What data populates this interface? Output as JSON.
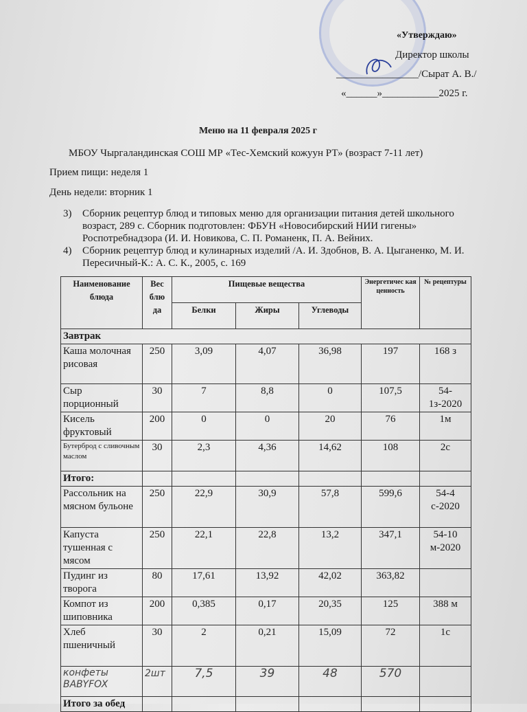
{
  "approval": {
    "title": "«Утверждаю»",
    "position": "Директор школы",
    "signature_line": "________________/Сырат А. В./",
    "date_line": "«______»___________2025 г.",
    "stamp_text": "МБОУ Чыргаландинская СОШ"
  },
  "title": "Меню на 11 февраля 2025 г",
  "school": "МБОУ Чыргаландинская СОШ МР «Тес-Хемский кожуун РТ» (возраст 7-11 лет)",
  "meal_week": "Прием пищи: неделя 1",
  "weekday": "День недели: вторник 1",
  "sources": [
    {
      "num": "3)",
      "text": "Сборник рецептур блюд и типовых меню для организации питания детей школьного возраст, 289 с. Сборник подготовлен: ФБУН «Новосибирский НИИ гигены» Роспотребнадзора (И. И. Новикова, С. П. Романенк, П. А. Вейних."
    },
    {
      "num": "4)",
      "text": "Сборник рецептур блюд и кулинарных изделий /А.  И. Здобнов, В. А. Цыганенко, М. И. Пересичный-К.: А. С. К., 2005, с. 169"
    }
  ],
  "table": {
    "headers": {
      "name": "Наименование блюда",
      "weight": "Вес блю да",
      "nutrients": "Пищевые вещества",
      "protein": "Белки",
      "fat": "Жиры",
      "carbs": "Углеводы",
      "energy": "Энергетичес кая ценность",
      "recipe": "№ рецептуры"
    },
    "breakfast_label": "Завтрак",
    "breakfast": [
      [
        "Каша молочная рисовая",
        "250",
        "3,09",
        "4,07",
        "36,98",
        "197",
        "168 з"
      ],
      [
        "Сыр порционный",
        "30",
        "7",
        "8,8",
        "0",
        "107,5",
        "54-1з-2020"
      ],
      [
        "Кисель фруктовый",
        "200",
        "0",
        "0",
        "20",
        "76",
        "1м"
      ],
      [
        "Бутерброд с сливочным маслом",
        "30",
        "2,3",
        "4,36",
        "14,62",
        "108",
        "2с"
      ]
    ],
    "total_label": "Итого:",
    "lunch": [
      [
        "Рассольник на мясном бульоне",
        "250",
        "22,9",
        "30,9",
        "57,8",
        "599,6",
        "54-4 с-2020"
      ],
      [
        "Капуста тушенная с мясом",
        "250",
        "22,1",
        "22,8",
        "13,2",
        "347,1",
        "54-10 м-2020"
      ],
      [
        "Пудинг из творога",
        "80",
        "17,61",
        "13,92",
        "42,02",
        "363,82",
        ""
      ],
      [
        "Компот из шиповника",
        "200",
        "0,385",
        "0,17",
        "20,35",
        "125",
        "388 м"
      ],
      [
        "Хлеб пшеничный",
        "30",
        "2",
        "0,21",
        "15,09",
        "72",
        "1с"
      ]
    ],
    "handwritten": [
      "конфеты BABYFOX",
      "2шт",
      "7,5",
      "39",
      "48",
      "570",
      ""
    ],
    "lunch_total_label": "Итого за обед"
  }
}
